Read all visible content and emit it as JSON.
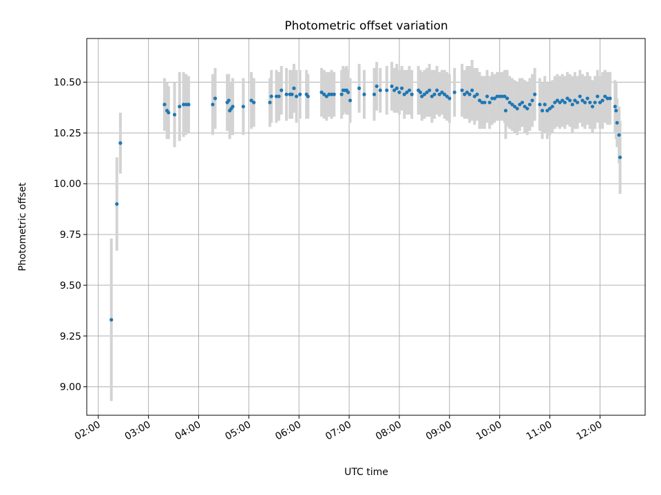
{
  "chart_data": {
    "type": "scatter",
    "title": "Photometric offset variation",
    "xlabel": "UTC time",
    "ylabel": "Photometric offset",
    "xlim": [
      1.77,
      12.9
    ],
    "ylim": [
      8.86,
      10.715
    ],
    "grid": true,
    "colors": {
      "point": "#1f77b4",
      "errorbar": "#d3d3d3",
      "grid": "#b0b0b0",
      "axes": "#000000"
    },
    "x_ticks": [
      {
        "value": 2,
        "label": "02:00"
      },
      {
        "value": 3,
        "label": "03:00"
      },
      {
        "value": 4,
        "label": "04:00"
      },
      {
        "value": 5,
        "label": "05:00"
      },
      {
        "value": 6,
        "label": "06:00"
      },
      {
        "value": 7,
        "label": "07:00"
      },
      {
        "value": 8,
        "label": "08:00"
      },
      {
        "value": 9,
        "label": "09:00"
      },
      {
        "value": 10,
        "label": "10:00"
      },
      {
        "value": 11,
        "label": "11:00"
      },
      {
        "value": 12,
        "label": "12:00"
      }
    ],
    "y_ticks": [
      {
        "value": 9.0,
        "label": "9.00"
      },
      {
        "value": 9.25,
        "label": "9.25"
      },
      {
        "value": 9.5,
        "label": "9.50"
      },
      {
        "value": 9.75,
        "label": "9.75"
      },
      {
        "value": 10.0,
        "label": "10.00"
      },
      {
        "value": 10.25,
        "label": "10.25"
      },
      {
        "value": 10.5,
        "label": "10.50"
      }
    ],
    "points": [
      [
        2.26,
        9.33,
        0.4
      ],
      [
        2.37,
        9.9,
        0.23
      ],
      [
        2.44,
        10.2,
        0.15
      ],
      [
        3.32,
        10.39,
        0.13
      ],
      [
        3.37,
        10.36,
        0.14
      ],
      [
        3.4,
        10.35,
        0.13
      ],
      [
        3.52,
        10.34,
        0.16
      ],
      [
        3.62,
        10.38,
        0.17
      ],
      [
        3.7,
        10.39,
        0.16
      ],
      [
        3.75,
        10.39,
        0.15
      ],
      [
        3.8,
        10.39,
        0.14
      ],
      [
        4.28,
        10.39,
        0.15
      ],
      [
        4.33,
        10.42,
        0.15
      ],
      [
        4.57,
        10.4,
        0.14
      ],
      [
        4.6,
        10.41,
        0.13
      ],
      [
        4.62,
        10.36,
        0.14
      ],
      [
        4.65,
        10.37,
        0.13
      ],
      [
        4.68,
        10.38,
        0.14
      ],
      [
        4.89,
        10.38,
        0.14
      ],
      [
        5.05,
        10.41,
        0.14
      ],
      [
        5.1,
        10.4,
        0.12
      ],
      [
        5.42,
        10.4,
        0.12
      ],
      [
        5.45,
        10.43,
        0.13
      ],
      [
        5.55,
        10.43,
        0.13
      ],
      [
        5.6,
        10.43,
        0.12
      ],
      [
        5.65,
        10.46,
        0.12
      ],
      [
        5.75,
        10.44,
        0.13
      ],
      [
        5.82,
        10.44,
        0.12
      ],
      [
        5.86,
        10.44,
        0.12
      ],
      [
        5.9,
        10.47,
        0.12
      ],
      [
        5.95,
        10.43,
        0.13
      ],
      [
        6.02,
        10.44,
        0.12
      ],
      [
        6.15,
        10.44,
        0.12
      ],
      [
        6.18,
        10.43,
        0.11
      ],
      [
        6.45,
        10.45,
        0.12
      ],
      [
        6.5,
        10.44,
        0.12
      ],
      [
        6.55,
        10.43,
        0.12
      ],
      [
        6.6,
        10.44,
        0.11
      ],
      [
        6.65,
        10.44,
        0.12
      ],
      [
        6.7,
        10.44,
        0.11
      ],
      [
        6.85,
        10.44,
        0.12
      ],
      [
        6.88,
        10.46,
        0.12
      ],
      [
        6.92,
        10.46,
        0.11
      ],
      [
        6.95,
        10.46,
        0.12
      ],
      [
        6.98,
        10.45,
        0.11
      ],
      [
        7.02,
        10.41,
        0.11
      ],
      [
        7.2,
        10.47,
        0.12
      ],
      [
        7.3,
        10.44,
        0.12
      ],
      [
        7.5,
        10.44,
        0.13
      ],
      [
        7.55,
        10.48,
        0.12
      ],
      [
        7.62,
        10.46,
        0.11
      ],
      [
        7.75,
        10.46,
        0.12
      ],
      [
        7.85,
        10.48,
        0.12
      ],
      [
        7.9,
        10.46,
        0.11
      ],
      [
        7.95,
        10.47,
        0.12
      ],
      [
        8.0,
        10.45,
        0.11
      ],
      [
        8.05,
        10.47,
        0.11
      ],
      [
        8.1,
        10.44,
        0.12
      ],
      [
        8.15,
        10.45,
        0.11
      ],
      [
        8.2,
        10.46,
        0.12
      ],
      [
        8.25,
        10.44,
        0.12
      ],
      [
        8.38,
        10.46,
        0.12
      ],
      [
        8.42,
        10.45,
        0.11
      ],
      [
        8.45,
        10.43,
        0.12
      ],
      [
        8.5,
        10.44,
        0.12
      ],
      [
        8.55,
        10.45,
        0.12
      ],
      [
        8.6,
        10.46,
        0.13
      ],
      [
        8.65,
        10.43,
        0.13
      ],
      [
        8.7,
        10.44,
        0.12
      ],
      [
        8.75,
        10.46,
        0.12
      ],
      [
        8.8,
        10.44,
        0.11
      ],
      [
        8.85,
        10.45,
        0.11
      ],
      [
        8.9,
        10.44,
        0.12
      ],
      [
        8.95,
        10.43,
        0.12
      ],
      [
        9.0,
        10.42,
        0.12
      ],
      [
        9.1,
        10.45,
        0.12
      ],
      [
        9.25,
        10.46,
        0.13
      ],
      [
        9.3,
        10.44,
        0.12
      ],
      [
        9.35,
        10.45,
        0.13
      ],
      [
        9.4,
        10.44,
        0.14
      ],
      [
        9.45,
        10.46,
        0.15
      ],
      [
        9.5,
        10.43,
        0.14
      ],
      [
        9.55,
        10.44,
        0.13
      ],
      [
        9.6,
        10.41,
        0.14
      ],
      [
        9.65,
        10.4,
        0.13
      ],
      [
        9.7,
        10.4,
        0.13
      ],
      [
        9.75,
        10.43,
        0.13
      ],
      [
        9.8,
        10.4,
        0.13
      ],
      [
        9.85,
        10.42,
        0.13
      ],
      [
        9.9,
        10.42,
        0.12
      ],
      [
        9.95,
        10.43,
        0.12
      ],
      [
        10.0,
        10.43,
        0.12
      ],
      [
        10.05,
        10.43,
        0.12
      ],
      [
        10.1,
        10.43,
        0.13
      ],
      [
        10.12,
        10.36,
        0.14
      ],
      [
        10.15,
        10.42,
        0.14
      ],
      [
        10.2,
        10.4,
        0.13
      ],
      [
        10.25,
        10.39,
        0.13
      ],
      [
        10.3,
        10.38,
        0.13
      ],
      [
        10.35,
        10.37,
        0.13
      ],
      [
        10.4,
        10.39,
        0.13
      ],
      [
        10.45,
        10.4,
        0.12
      ],
      [
        10.5,
        10.38,
        0.13
      ],
      [
        10.55,
        10.37,
        0.13
      ],
      [
        10.6,
        10.39,
        0.13
      ],
      [
        10.65,
        10.41,
        0.13
      ],
      [
        10.7,
        10.44,
        0.13
      ],
      [
        10.8,
        10.39,
        0.13
      ],
      [
        10.85,
        10.36,
        0.14
      ],
      [
        10.9,
        10.39,
        0.14
      ],
      [
        10.95,
        10.36,
        0.14
      ],
      [
        11.0,
        10.37,
        0.13
      ],
      [
        11.05,
        10.38,
        0.13
      ],
      [
        11.1,
        10.4,
        0.13
      ],
      [
        11.15,
        10.41,
        0.13
      ],
      [
        11.2,
        10.4,
        0.13
      ],
      [
        11.25,
        10.41,
        0.13
      ],
      [
        11.3,
        10.4,
        0.13
      ],
      [
        11.35,
        10.42,
        0.13
      ],
      [
        11.4,
        10.41,
        0.13
      ],
      [
        11.45,
        10.39,
        0.14
      ],
      [
        11.5,
        10.41,
        0.14
      ],
      [
        11.55,
        10.4,
        0.13
      ],
      [
        11.6,
        10.43,
        0.13
      ],
      [
        11.65,
        10.41,
        0.13
      ],
      [
        11.7,
        10.4,
        0.13
      ],
      [
        11.75,
        10.42,
        0.13
      ],
      [
        11.8,
        10.4,
        0.13
      ],
      [
        11.85,
        10.38,
        0.13
      ],
      [
        11.9,
        10.4,
        0.13
      ],
      [
        11.95,
        10.43,
        0.13
      ],
      [
        12.0,
        10.4,
        0.13
      ],
      [
        12.05,
        10.41,
        0.14
      ],
      [
        12.1,
        10.43,
        0.13
      ],
      [
        12.15,
        10.42,
        0.13
      ],
      [
        12.2,
        10.42,
        0.13
      ],
      [
        12.3,
        10.38,
        0.13
      ],
      [
        12.32,
        10.36,
        0.14
      ],
      [
        12.34,
        10.3,
        0.12
      ],
      [
        12.38,
        10.24,
        0.14
      ],
      [
        12.4,
        10.13,
        0.18
      ]
    ]
  }
}
